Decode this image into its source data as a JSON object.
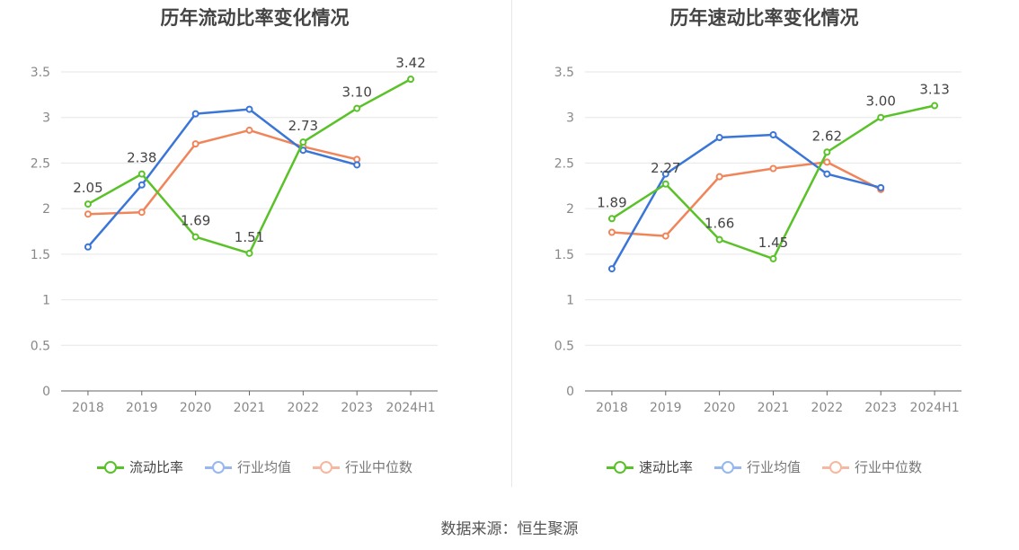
{
  "footer": "数据来源：恒生聚源",
  "colors": {
    "primary": "#5ac229",
    "industry_avg": "#3a75d8",
    "industry_median": "#f0855a",
    "legend_avg": "#97b8ee",
    "legend_median": "#f6b8a0"
  },
  "chart_data": [
    {
      "type": "line",
      "title": "历年流动比率变化情况",
      "categories": [
        "2018",
        "2019",
        "2020",
        "2021",
        "2022",
        "2023",
        "2024H1"
      ],
      "yticks": [
        "0",
        "0.5",
        "1",
        "1.5",
        "2",
        "2.5",
        "3",
        "3.5"
      ],
      "ylim": [
        0,
        3.5
      ],
      "grid": true,
      "legend_position": "bottom",
      "series": [
        {
          "name": "流动比率",
          "values": [
            2.05,
            2.38,
            1.69,
            1.51,
            2.73,
            3.1,
            3.42
          ],
          "labels": [
            "2.05",
            "2.38",
            "1.69",
            "1.51",
            "2.73",
            "3.10",
            "3.42"
          ]
        },
        {
          "name": "行业均值",
          "values": [
            1.58,
            2.26,
            3.04,
            3.09,
            2.64,
            2.48,
            null
          ]
        },
        {
          "name": "行业中位数",
          "values": [
            1.94,
            1.96,
            2.71,
            2.86,
            2.68,
            2.54,
            null
          ]
        }
      ]
    },
    {
      "type": "line",
      "title": "历年速动比率变化情况",
      "categories": [
        "2018",
        "2019",
        "2020",
        "2021",
        "2022",
        "2023",
        "2024H1"
      ],
      "yticks": [
        "0",
        "0.5",
        "1",
        "1.5",
        "2",
        "2.5",
        "3",
        "3.5"
      ],
      "ylim": [
        0,
        3.5
      ],
      "grid": true,
      "legend_position": "bottom",
      "series": [
        {
          "name": "速动比率",
          "values": [
            1.89,
            2.27,
            1.66,
            1.45,
            2.62,
            3.0,
            3.13
          ],
          "labels": [
            "1.89",
            "2.27",
            "1.66",
            "1.45",
            "2.62",
            "3.00",
            "3.13"
          ]
        },
        {
          "name": "行业均值",
          "values": [
            1.34,
            2.38,
            2.78,
            2.81,
            2.38,
            2.23,
            null
          ]
        },
        {
          "name": "行业中位数",
          "values": [
            1.74,
            1.7,
            2.35,
            2.44,
            2.51,
            2.21,
            null
          ]
        }
      ]
    }
  ]
}
